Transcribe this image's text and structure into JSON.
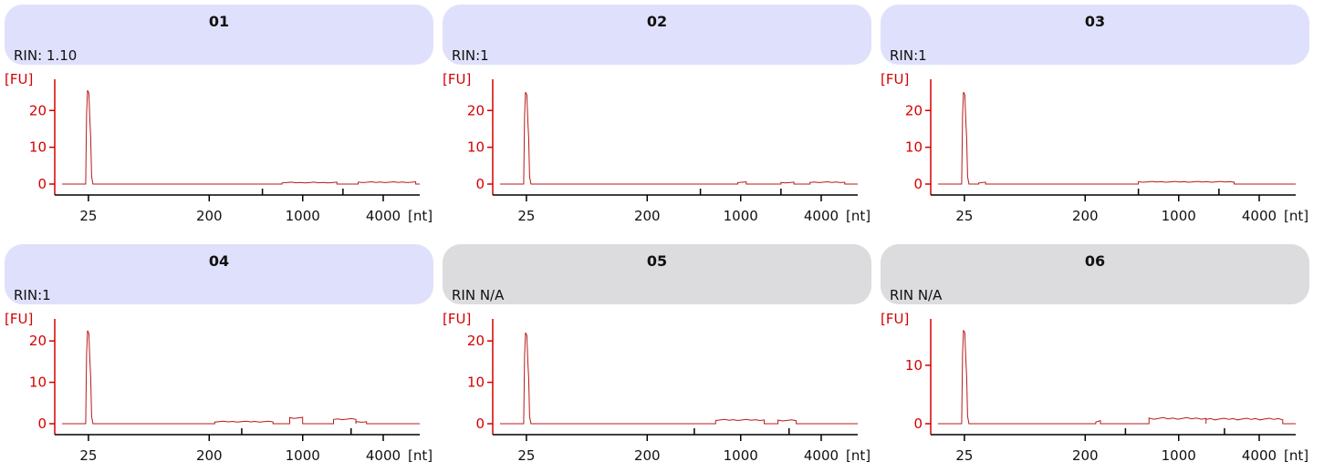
{
  "colors": {
    "header_lavender": "#dfe0fb",
    "header_grey": "#dcdcdf",
    "axis_red": "#d40000",
    "trace_red": "#b81a1a",
    "x_axis": "#000000"
  },
  "panels": [
    {
      "id": "01",
      "title": "01",
      "rin": "RIN: 1.10",
      "header_color": "lavender",
      "y_unit": "[FU]",
      "x_unit": "[nt]",
      "ylim": [
        0,
        27
      ],
      "y_ticks": [
        {
          "v": 0,
          "label": "0"
        },
        {
          "v": 10,
          "label": "10"
        },
        {
          "v": 20,
          "label": "20"
        }
      ],
      "x_tick_labels": [
        {
          "nt": 25,
          "label": "25"
        },
        {
          "nt": 200,
          "label": "200"
        },
        {
          "nt": 1000,
          "label": "1000"
        },
        {
          "nt": 4000,
          "label": "4000"
        }
      ],
      "x_minor_ticks_nt": [
        500,
        2000
      ],
      "trace": {
        "peak_nt": 25,
        "peak_fu": 25.5,
        "noise": [
          {
            "from": 700,
            "to": 1800,
            "fu": 0.4
          },
          {
            "from": 2600,
            "to": 7000,
            "fu": 0.5
          }
        ]
      }
    },
    {
      "id": "02",
      "title": "02",
      "rin": "RIN:1",
      "header_color": "lavender",
      "y_unit": "[FU]",
      "x_unit": "[nt]",
      "ylim": [
        0,
        27
      ],
      "y_ticks": [
        {
          "v": 0,
          "label": "0"
        },
        {
          "v": 10,
          "label": "10"
        },
        {
          "v": 20,
          "label": "20"
        }
      ],
      "x_tick_labels": [
        {
          "nt": 25,
          "label": "25"
        },
        {
          "nt": 200,
          "label": "200"
        },
        {
          "nt": 1000,
          "label": "1000"
        },
        {
          "nt": 4000,
          "label": "4000"
        }
      ],
      "x_minor_ticks_nt": [
        500,
        2000
      ],
      "trace": {
        "peak_nt": 25,
        "peak_fu": 25.0,
        "noise": [
          {
            "from": 950,
            "to": 1100,
            "fu": 0.5
          },
          {
            "from": 2000,
            "to": 2500,
            "fu": 0.4
          },
          {
            "from": 3300,
            "to": 6000,
            "fu": 0.5
          }
        ]
      }
    },
    {
      "id": "03",
      "title": "03",
      "rin": "RIN:1",
      "header_color": "lavender",
      "y_unit": "[FU]",
      "x_unit": "[nt]",
      "ylim": [
        0,
        27
      ],
      "y_ticks": [
        {
          "v": 0,
          "label": "0"
        },
        {
          "v": 10,
          "label": "10"
        },
        {
          "v": 20,
          "label": "20"
        }
      ],
      "x_tick_labels": [
        {
          "nt": 25,
          "label": "25"
        },
        {
          "nt": 200,
          "label": "200"
        },
        {
          "nt": 1000,
          "label": "1000"
        },
        {
          "nt": 4000,
          "label": "4000"
        }
      ],
      "x_minor_ticks_nt": [
        500,
        2000
      ],
      "trace": {
        "peak_nt": 25,
        "peak_fu": 25.0,
        "noise": [
          {
            "from": 32,
            "to": 36,
            "fu": 0.4
          },
          {
            "from": 500,
            "to": 2600,
            "fu": 0.6
          }
        ]
      }
    },
    {
      "id": "04",
      "title": "04",
      "rin": "RIN:1",
      "header_color": "lavender",
      "y_unit": "[FU]",
      "x_unit": "[nt]",
      "ylim": [
        0,
        24
      ],
      "y_ticks": [
        {
          "v": 0,
          "label": "0"
        },
        {
          "v": 10,
          "label": "10"
        },
        {
          "v": 20,
          "label": "20"
        }
      ],
      "x_tick_labels": [
        {
          "nt": 25,
          "label": "25"
        },
        {
          "nt": 200,
          "label": "200"
        },
        {
          "nt": 1000,
          "label": "1000"
        },
        {
          "nt": 4000,
          "label": "4000"
        }
      ],
      "x_minor_ticks_nt": [
        350,
        2300
      ],
      "trace": {
        "peak_nt": 25,
        "peak_fu": 22.5,
        "noise": [
          {
            "from": 220,
            "to": 600,
            "fu": 0.5
          },
          {
            "from": 800,
            "to": 1000,
            "fu": 1.4
          },
          {
            "from": 1700,
            "to": 2500,
            "fu": 1.1
          },
          {
            "from": 2500,
            "to": 3000,
            "fu": 0.4
          }
        ]
      }
    },
    {
      "id": "05",
      "title": "05",
      "rin": "RIN N/A",
      "header_color": "grey",
      "y_unit": "[FU]",
      "x_unit": "[nt]",
      "ylim": [
        0,
        24
      ],
      "y_ticks": [
        {
          "v": 0,
          "label": "0"
        },
        {
          "v": 10,
          "label": "10"
        },
        {
          "v": 20,
          "label": "20"
        }
      ],
      "x_tick_labels": [
        {
          "nt": 25,
          "label": "25"
        },
        {
          "nt": 200,
          "label": "200"
        },
        {
          "nt": 1000,
          "label": "1000"
        },
        {
          "nt": 4000,
          "label": "4000"
        }
      ],
      "x_minor_ticks_nt": [
        450,
        2300
      ],
      "trace": {
        "peak_nt": 25,
        "peak_fu": 22.0,
        "noise": [
          {
            "from": 650,
            "to": 1500,
            "fu": 0.9
          },
          {
            "from": 1900,
            "to": 2600,
            "fu": 0.8
          }
        ]
      }
    },
    {
      "id": "06",
      "title": "06",
      "rin": "RIN N/A",
      "header_color": "grey",
      "y_unit": "[FU]",
      "x_unit": "[nt]",
      "ylim": [
        0,
        17
      ],
      "y_ticks": [
        {
          "v": 0,
          "label": "0"
        },
        {
          "v": 10,
          "label": "10"
        }
      ],
      "x_tick_labels": [
        {
          "nt": 25,
          "label": "25"
        },
        {
          "nt": 200,
          "label": "200"
        },
        {
          "nt": 1000,
          "label": "1000"
        },
        {
          "nt": 4000,
          "label": "4000"
        }
      ],
      "x_minor_ticks_nt": [
        400,
        2200
      ],
      "trace": {
        "peak_nt": 25,
        "peak_fu": 16.0,
        "noise": [
          {
            "from": 240,
            "to": 260,
            "fu": 0.4
          },
          {
            "from": 600,
            "to": 1600,
            "fu": 0.9
          },
          {
            "from": 1600,
            "to": 6000,
            "fu": 0.8
          }
        ]
      }
    }
  ],
  "chart_data": [
    {
      "type": "line",
      "title": "01",
      "subtitle": "RIN: 1.10",
      "xlabel": "[nt]",
      "ylabel": "[FU]",
      "x_scale": "log",
      "ylim": [
        0,
        27
      ],
      "grid": false,
      "series": [
        {
          "x": [
            20,
            23,
            24,
            25,
            26,
            27,
            30,
            700,
            1800,
            3000,
            7000
          ],
          "y": [
            0,
            0,
            20,
            25.5,
            14,
            1,
            0,
            0.4,
            0.4,
            0.5,
            0.5
          ]
        }
      ]
    },
    {
      "type": "line",
      "title": "02",
      "subtitle": "RIN:1",
      "xlabel": "[nt]",
      "ylabel": "[FU]",
      "x_scale": "log",
      "ylim": [
        0,
        27
      ],
      "grid": false,
      "series": [
        {
          "x": [
            20,
            23,
            24,
            25,
            26,
            27,
            30,
            1000,
            2200,
            4000,
            6000
          ],
          "y": [
            0,
            0,
            20,
            25,
            12,
            1,
            0,
            0.5,
            0.4,
            0.5,
            0.5
          ]
        }
      ]
    },
    {
      "type": "line",
      "title": "03",
      "subtitle": "RIN:1",
      "xlabel": "[nt]",
      "ylabel": "[FU]",
      "x_scale": "log",
      "ylim": [
        0,
        27
      ],
      "grid": false,
      "series": [
        {
          "x": [
            20,
            23,
            24,
            25,
            26,
            27,
            34,
            500,
            1000,
            2600,
            7000
          ],
          "y": [
            0,
            0,
            20,
            25,
            14,
            1,
            0.4,
            0.6,
            0.9,
            0.6,
            0
          ]
        }
      ]
    },
    {
      "type": "line",
      "title": "04",
      "subtitle": "RIN:1",
      "xlabel": "[nt]",
      "ylabel": "[FU]",
      "x_scale": "log",
      "ylim": [
        0,
        24
      ],
      "grid": false,
      "series": [
        {
          "x": [
            20,
            23,
            24,
            25,
            26,
            27,
            30,
            300,
            900,
            2000,
            3000,
            7000
          ],
          "y": [
            0,
            0,
            18,
            22.5,
            12,
            1,
            0,
            0.5,
            1.4,
            1.1,
            0.4,
            0
          ]
        }
      ]
    },
    {
      "type": "line",
      "title": "05",
      "subtitle": "RIN N/A",
      "xlabel": "[nt]",
      "ylabel": "[FU]",
      "x_scale": "log",
      "ylim": [
        0,
        24
      ],
      "grid": false,
      "series": [
        {
          "x": [
            20,
            23,
            24,
            25,
            26,
            27,
            30,
            650,
            1000,
            2200,
            7000
          ],
          "y": [
            0,
            0,
            18,
            22,
            11,
            1,
            0,
            0.6,
            1.2,
            0.8,
            0
          ]
        }
      ]
    },
    {
      "type": "line",
      "title": "06",
      "subtitle": "RIN N/A",
      "xlabel": "[nt]",
      "ylabel": "[FU]",
      "x_scale": "log",
      "ylim": [
        0,
        17
      ],
      "grid": false,
      "series": [
        {
          "x": [
            20,
            23,
            24,
            25,
            26,
            27,
            30,
            250,
            1000,
            2200,
            6000
          ],
          "y": [
            0,
            0,
            12,
            16,
            9,
            1,
            0,
            0.4,
            1.0,
            0.8,
            0.5
          ]
        }
      ]
    }
  ]
}
